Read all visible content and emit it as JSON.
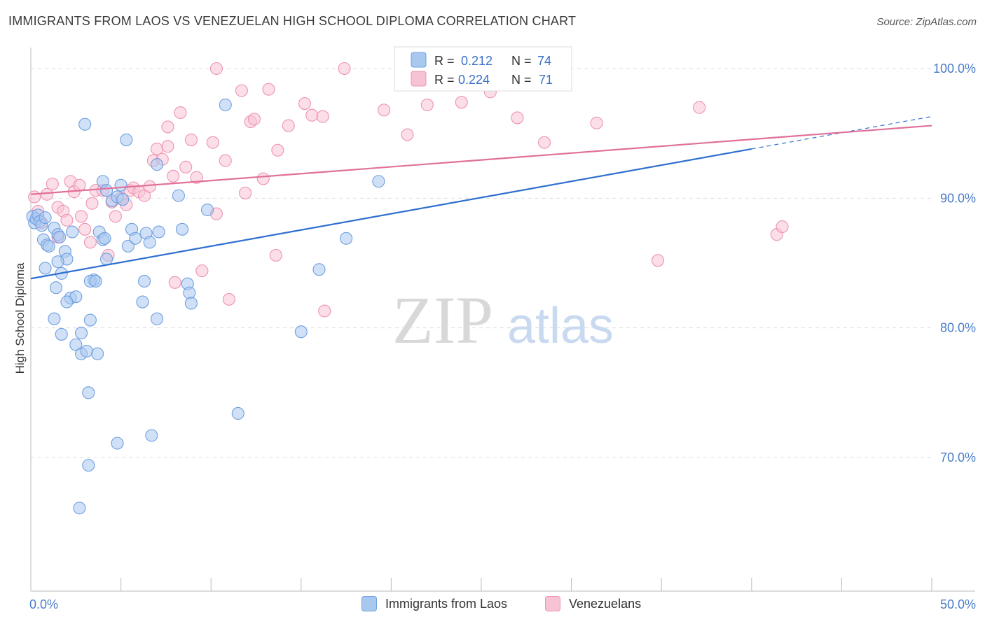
{
  "title": "IMMIGRANTS FROM LAOS VS VENEZUELAN HIGH SCHOOL DIPLOMA CORRELATION CHART",
  "source": "Source: ZipAtlas.com",
  "watermark": {
    "zip": "ZIP",
    "atlas": "atlas"
  },
  "stats_box": {
    "rows": [
      {
        "r_label": "R =",
        "r_value": "0.212",
        "n_label": "N =",
        "n_value": "74"
      },
      {
        "r_label": "R =",
        "r_value": "0.224",
        "n_label": "N =",
        "n_value": "71"
      }
    ]
  },
  "legend": [
    "Immigrants from Laos",
    "Venezuelans"
  ],
  "colors": {
    "blue_fill": "#a9c8f0",
    "blue_stroke": "#6f9fe0",
    "blue_line": "#2f6fd0",
    "pink_fill": "#f7c3d4",
    "pink_stroke": "#ee93b2",
    "pink_line": "#e0709a",
    "axis_text": "#4a7cc7",
    "grid": "#dddddd"
  },
  "chart_data": {
    "type": "scatter",
    "title": "IMMIGRANTS FROM LAOS VS VENEZUELAN HIGH SCHOOL DIPLOMA CORRELATION CHART",
    "xlabel": "",
    "ylabel": "High School Diploma",
    "xlim": [
      0,
      50
    ],
    "ylim": [
      60,
      104
    ],
    "x_tick_labels": [
      {
        "value": 0,
        "label": "0.0%"
      },
      {
        "value": 50,
        "label": "50.0%"
      }
    ],
    "y_tick_labels": [
      {
        "value": 100,
        "label": "100.0%"
      },
      {
        "value": 90,
        "label": "90.0%"
      },
      {
        "value": 80,
        "label": "80.0%"
      },
      {
        "value": 70,
        "label": "70.0%"
      }
    ],
    "grid": true,
    "series": [
      {
        "name": "Immigrants from Laos",
        "r": 0.212,
        "n": 74,
        "trend": {
          "x": [
            0,
            40
          ],
          "y": [
            83.8,
            93.8
          ],
          "dashed_extension": {
            "x": [
              40,
              50
            ],
            "y": [
              93.8,
              96.3
            ]
          }
        },
        "points": [
          [
            0.1,
            88.6
          ],
          [
            0.2,
            88.1
          ],
          [
            0.3,
            88.4
          ],
          [
            0.4,
            88.7
          ],
          [
            0.5,
            88.2
          ],
          [
            0.6,
            87.9
          ],
          [
            0.8,
            88.5
          ],
          [
            0.7,
            86.8
          ],
          [
            0.9,
            86.4
          ],
          [
            1.0,
            86.3
          ],
          [
            0.8,
            84.6
          ],
          [
            1.3,
            87.7
          ],
          [
            1.5,
            87.2
          ],
          [
            1.6,
            87.0
          ],
          [
            1.9,
            85.9
          ],
          [
            2.0,
            85.3
          ],
          [
            1.7,
            84.2
          ],
          [
            1.5,
            85.1
          ],
          [
            1.4,
            83.1
          ],
          [
            2.2,
            82.3
          ],
          [
            2.5,
            82.4
          ],
          [
            2.0,
            82.0
          ],
          [
            1.3,
            80.7
          ],
          [
            1.7,
            79.5
          ],
          [
            2.5,
            78.7
          ],
          [
            2.8,
            79.6
          ],
          [
            2.8,
            78.0
          ],
          [
            3.1,
            78.2
          ],
          [
            3.7,
            78.0
          ],
          [
            3.3,
            80.6
          ],
          [
            3.5,
            83.7
          ],
          [
            3.3,
            83.6
          ],
          [
            3.8,
            87.4
          ],
          [
            4.0,
            86.8
          ],
          [
            4.2,
            85.3
          ],
          [
            3.0,
            95.7
          ],
          [
            4.0,
            91.3
          ],
          [
            4.2,
            90.6
          ],
          [
            4.5,
            89.8
          ],
          [
            4.8,
            90.1
          ],
          [
            5.0,
            91.0
          ],
          [
            5.1,
            89.9
          ],
          [
            5.3,
            94.5
          ],
          [
            5.4,
            86.3
          ],
          [
            5.6,
            87.6
          ],
          [
            5.8,
            86.9
          ],
          [
            6.4,
            87.3
          ],
          [
            6.6,
            86.6
          ],
          [
            7.0,
            92.6
          ],
          [
            7.1,
            87.4
          ],
          [
            6.3,
            83.6
          ],
          [
            6.2,
            82.0
          ],
          [
            7.0,
            80.7
          ],
          [
            8.2,
            90.2
          ],
          [
            8.4,
            87.6
          ],
          [
            8.7,
            83.4
          ],
          [
            8.8,
            82.7
          ],
          [
            8.9,
            81.9
          ],
          [
            9.8,
            89.1
          ],
          [
            10.8,
            97.2
          ],
          [
            11.5,
            73.4
          ],
          [
            15.0,
            79.7
          ],
          [
            16.0,
            84.5
          ],
          [
            17.5,
            86.9
          ],
          [
            19.3,
            91.3
          ],
          [
            26.5,
            99.0
          ],
          [
            4.8,
            71.1
          ],
          [
            6.7,
            71.7
          ],
          [
            3.2,
            75.0
          ],
          [
            3.2,
            69.4
          ],
          [
            2.7,
            66.1
          ],
          [
            4.1,
            86.9
          ],
          [
            3.6,
            83.6
          ],
          [
            2.3,
            87.4
          ]
        ]
      },
      {
        "name": "Venezuelans",
        "r": 0.224,
        "n": 71,
        "trend": {
          "x": [
            0,
            50
          ],
          "y": [
            90.3,
            95.6
          ]
        },
        "points": [
          [
            0.2,
            90.1
          ],
          [
            0.4,
            89.0
          ],
          [
            0.6,
            88.1
          ],
          [
            0.9,
            90.3
          ],
          [
            1.2,
            91.1
          ],
          [
            1.5,
            89.3
          ],
          [
            1.8,
            89.0
          ],
          [
            2.0,
            88.3
          ],
          [
            2.2,
            91.3
          ],
          [
            2.4,
            90.5
          ],
          [
            2.7,
            91.0
          ],
          [
            2.8,
            88.6
          ],
          [
            3.0,
            87.6
          ],
          [
            3.3,
            86.6
          ],
          [
            3.4,
            89.6
          ],
          [
            3.6,
            90.6
          ],
          [
            4.0,
            90.6
          ],
          [
            4.3,
            85.6
          ],
          [
            4.5,
            89.7
          ],
          [
            4.7,
            88.6
          ],
          [
            5.0,
            90.0
          ],
          [
            5.3,
            89.5
          ],
          [
            5.5,
            90.6
          ],
          [
            5.7,
            90.8
          ],
          [
            6.0,
            90.5
          ],
          [
            6.3,
            90.2
          ],
          [
            6.6,
            90.9
          ],
          [
            6.8,
            92.9
          ],
          [
            7.0,
            93.8
          ],
          [
            7.3,
            93.0
          ],
          [
            7.6,
            94.0
          ],
          [
            7.6,
            95.5
          ],
          [
            7.9,
            91.7
          ],
          [
            8.3,
            96.6
          ],
          [
            8.6,
            92.4
          ],
          [
            8.9,
            94.5
          ],
          [
            9.2,
            91.6
          ],
          [
            9.5,
            84.4
          ],
          [
            10.1,
            94.3
          ],
          [
            10.3,
            88.8
          ],
          [
            10.8,
            92.9
          ],
          [
            11.0,
            82.2
          ],
          [
            11.7,
            98.3
          ],
          [
            11.9,
            90.4
          ],
          [
            12.2,
            95.9
          ],
          [
            12.4,
            96.1
          ],
          [
            12.9,
            91.5
          ],
          [
            13.2,
            98.4
          ],
          [
            13.6,
            85.6
          ],
          [
            13.7,
            93.7
          ],
          [
            14.3,
            95.6
          ],
          [
            15.2,
            97.3
          ],
          [
            15.6,
            96.4
          ],
          [
            16.2,
            96.3
          ],
          [
            16.3,
            81.3
          ],
          [
            17.4,
            100.0
          ],
          [
            19.6,
            96.8
          ],
          [
            20.9,
            94.9
          ],
          [
            22.0,
            97.2
          ],
          [
            23.9,
            97.4
          ],
          [
            25.5,
            98.2
          ],
          [
            27.0,
            96.2
          ],
          [
            28.5,
            94.3
          ],
          [
            31.4,
            95.8
          ],
          [
            34.8,
            85.2
          ],
          [
            37.1,
            97.0
          ],
          [
            41.4,
            87.2
          ],
          [
            41.7,
            87.8
          ],
          [
            10.3,
            100.0
          ],
          [
            8.0,
            83.5
          ],
          [
            1.5,
            87.0
          ]
        ]
      }
    ]
  }
}
